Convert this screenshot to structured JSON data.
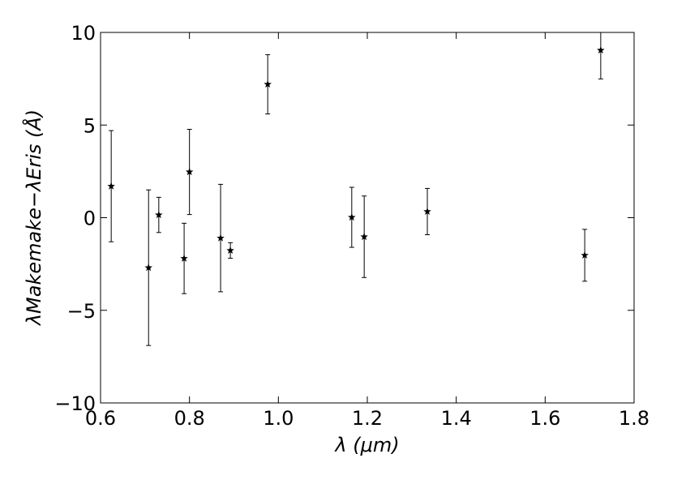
{
  "chart_data": {
    "type": "errorbar",
    "xlabel": "λ (μm)",
    "ylabel": "λMakemake−λEris (Å)",
    "x": [
      0.624,
      0.708,
      0.731,
      0.788,
      0.8,
      0.87,
      0.892,
      0.976,
      1.165,
      1.193,
      1.335,
      1.689,
      1.725
    ],
    "values": [
      1.7,
      -2.7,
      0.15,
      -2.2,
      2.47,
      -1.1,
      -1.77,
      7.2,
      0.02,
      -1.03,
      0.33,
      -2.03,
      9.04
    ],
    "errors": [
      3.0,
      4.2,
      0.95,
      1.9,
      2.3,
      2.9,
      0.42,
      1.6,
      1.62,
      2.2,
      1.25,
      1.4,
      1.55
    ],
    "color": "#000000",
    "xlim": [
      0.6,
      1.8
    ],
    "ylim": [
      -10,
      10
    ],
    "xticks": [
      0.6,
      0.8,
      {
        "value": 1,
        "label": "1.0"
      },
      1.2,
      1.4,
      1.6,
      1.8
    ],
    "yticks": [
      {
        "value": -10,
        "label": "−10"
      },
      {
        "value": -5,
        "label": "−5"
      },
      0,
      5,
      10
    ]
  }
}
